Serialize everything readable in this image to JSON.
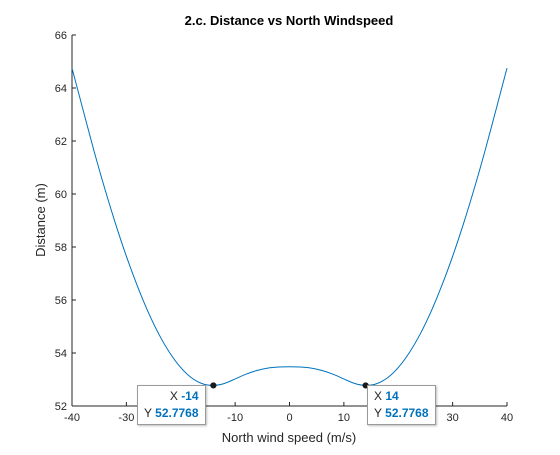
{
  "chart_data": {
    "type": "line",
    "title": "2.c. Distance vs North Windspeed",
    "xlabel": "North wind speed (m/s)",
    "ylabel": "Distance (m)",
    "xlim": [
      -40,
      40
    ],
    "ylim": [
      52,
      66
    ],
    "xticks": [
      -40,
      -30,
      -20,
      -10,
      0,
      10,
      20,
      30,
      40
    ],
    "yticks": [
      52,
      54,
      56,
      58,
      60,
      62,
      64,
      66
    ],
    "grid": false,
    "series": [
      {
        "color": "#0072bd",
        "x": [
          -40,
          -38,
          -36,
          -34,
          -32,
          -30,
          -28,
          -26,
          -24,
          -22,
          -20,
          -18,
          -16,
          -14,
          -12,
          -10,
          -8,
          -6,
          -4,
          -2,
          0,
          2,
          4,
          6,
          8,
          10,
          12,
          14,
          16,
          18,
          20,
          22,
          24,
          26,
          28,
          30,
          32,
          34,
          36,
          38,
          40
        ],
        "values": [
          64.75,
          63.2,
          61.66,
          60.22,
          58.88,
          57.65,
          56.54,
          55.55,
          54.7,
          54.0,
          53.45,
          53.06,
          52.84,
          52.7768,
          52.85,
          53.02,
          53.2,
          53.34,
          53.43,
          53.47,
          53.48,
          53.47,
          53.43,
          53.34,
          53.2,
          53.02,
          52.85,
          52.7768,
          52.84,
          53.06,
          53.45,
          54.0,
          54.7,
          55.55,
          56.54,
          57.65,
          58.88,
          60.22,
          61.66,
          63.2,
          64.75
        ]
      }
    ],
    "datatips": [
      {
        "x_label": "X",
        "x_value": "-14",
        "y_label": "Y",
        "y_value": "52.7768",
        "x": -14,
        "y": 52.7768
      },
      {
        "x_label": "X",
        "x_value": "14",
        "y_label": "Y",
        "y_value": "52.7768",
        "x": 14,
        "y": 52.7768
      }
    ]
  }
}
